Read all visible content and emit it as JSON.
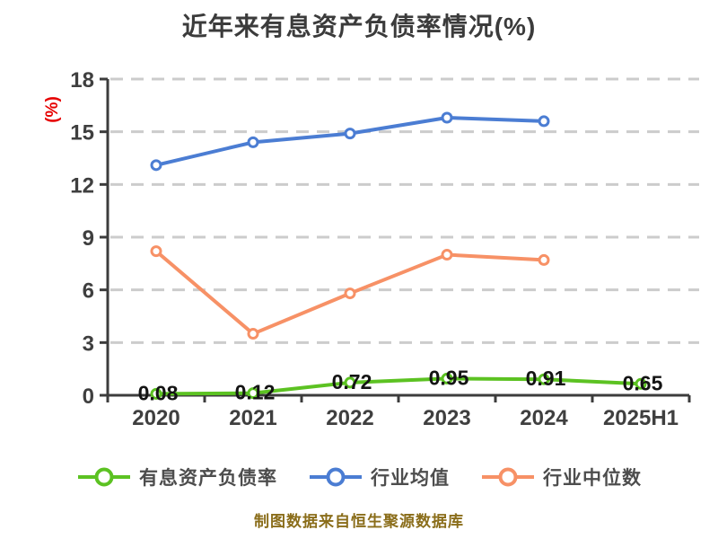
{
  "title": "近年来有息资产负债率情况(%)",
  "footer_note": "制图数据来自恒生聚源数据库",
  "colors": {
    "series_green": "#5cc222",
    "series_blue": "#4b7dd3",
    "series_orange": "#f79166",
    "axis": "#3c3c3c",
    "grid": "#cccccc",
    "tick_label": "#3f3f3f",
    "title": "#3b3b3b",
    "data_label": "#141414",
    "legend_text": "#4d4d4d",
    "ylabel_red": "#e60000",
    "footer": "#8a6d1a",
    "marker_fill": "#ffffff"
  },
  "chart_data": {
    "type": "line",
    "title": "近年来有息资产负债率情况(%)",
    "ylabel": "(%)",
    "xlabel": "",
    "categories": [
      "2020",
      "2021",
      "2022",
      "2023",
      "2024",
      "2025H1"
    ],
    "yticks": [
      0,
      3,
      6,
      9,
      12,
      15,
      18
    ],
    "ylim": [
      0,
      18
    ],
    "grid": "horizontal-dashed",
    "legend_position": "bottom",
    "series": [
      {
        "name": "有息资产负债率",
        "color": "#5cc222",
        "values": [
          0.08,
          0.12,
          0.72,
          0.95,
          0.91,
          0.65
        ],
        "point_labels": [
          "0.08",
          "0.12",
          "0.72",
          "0.95",
          "0.91",
          "0.65"
        ]
      },
      {
        "name": "行业均值",
        "color": "#4b7dd3",
        "values": [
          13.1,
          14.4,
          14.9,
          15.8,
          15.6,
          null
        ],
        "point_labels": []
      },
      {
        "name": "行业中位数",
        "color": "#f79166",
        "values": [
          8.2,
          3.5,
          5.8,
          8.0,
          7.7,
          null
        ],
        "point_labels": []
      }
    ]
  }
}
